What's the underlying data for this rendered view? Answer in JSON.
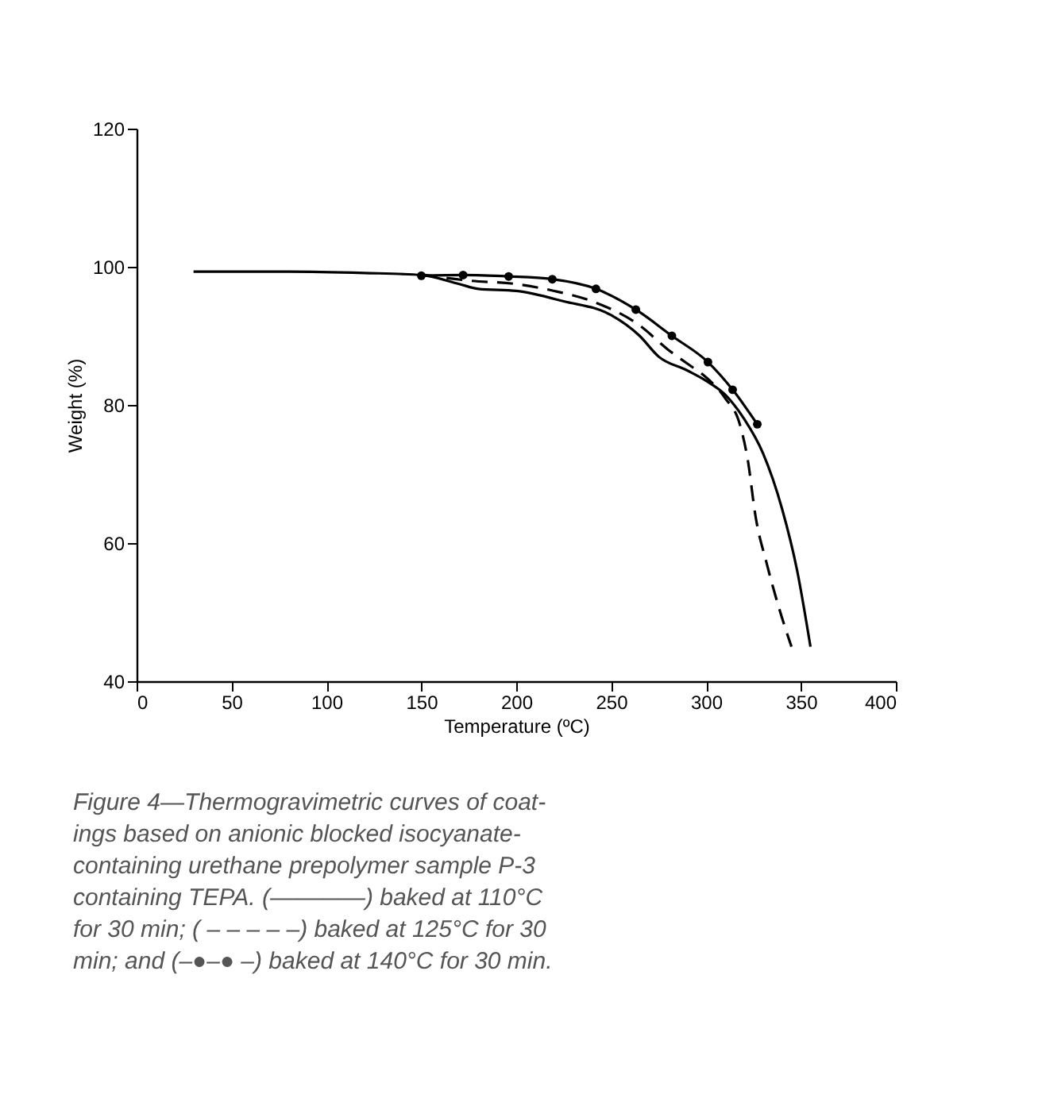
{
  "chart_data": {
    "type": "line",
    "xlabel": "Temperature (ºC)",
    "ylabel": "Weight (%)",
    "xlim": [
      0,
      400
    ],
    "xticks": [
      0,
      50,
      100,
      150,
      200,
      250,
      300,
      350,
      400
    ],
    "ylim": [
      40,
      120
    ],
    "yticks": [
      40,
      60,
      80,
      100,
      120
    ],
    "grid": false,
    "legend": false,
    "series": [
      {
        "color": "#000000",
        "line_style": "solid",
        "marker": "none",
        "x": [
          30,
          80,
          120,
          150,
          170,
          180,
          200,
          225,
          250,
          265,
          275,
          290,
          300,
          310,
          320,
          330,
          340,
          348,
          355
        ],
        "values": [
          99.3,
          99.3,
          99.1,
          98.8,
          97.5,
          96.8,
          96.5,
          95,
          93,
          90,
          87,
          85,
          83.5,
          81.5,
          78,
          73,
          65,
          56,
          45
        ]
      },
      {
        "color": "#000000",
        "line_style": "dashed",
        "marker": "none",
        "x": [
          150,
          175,
          200,
          220,
          240,
          265,
          280,
          290,
          300,
          310,
          318,
          322,
          326,
          332,
          338,
          345
        ],
        "values": [
          98.9,
          98,
          97.5,
          96.5,
          95,
          91.5,
          88,
          86,
          84,
          81,
          77,
          72,
          64,
          57,
          51,
          45
        ]
      },
      {
        "color": "#000000",
        "line_style": "solid",
        "marker": "circle",
        "x": [
          150,
          172,
          196,
          219,
          242,
          263,
          282,
          301,
          314,
          327
        ],
        "values": [
          98.7,
          98.8,
          98.6,
          98.2,
          96.8,
          93.8,
          90,
          86.2,
          82.2,
          77.2
        ]
      }
    ],
    "annotations": [
      "Figure 4—Thermogravimetric curves of coat-",
      "ings based on anionic blocked isocyanate-",
      "containing urethane prepolymer sample P-3",
      "containing TEPA. (————) baked at 110°C",
      "for 30 min; ( – – – – –) baked at 125°C for 30",
      "min; and (–●–● –) baked at 140°C for 30 min."
    ]
  }
}
